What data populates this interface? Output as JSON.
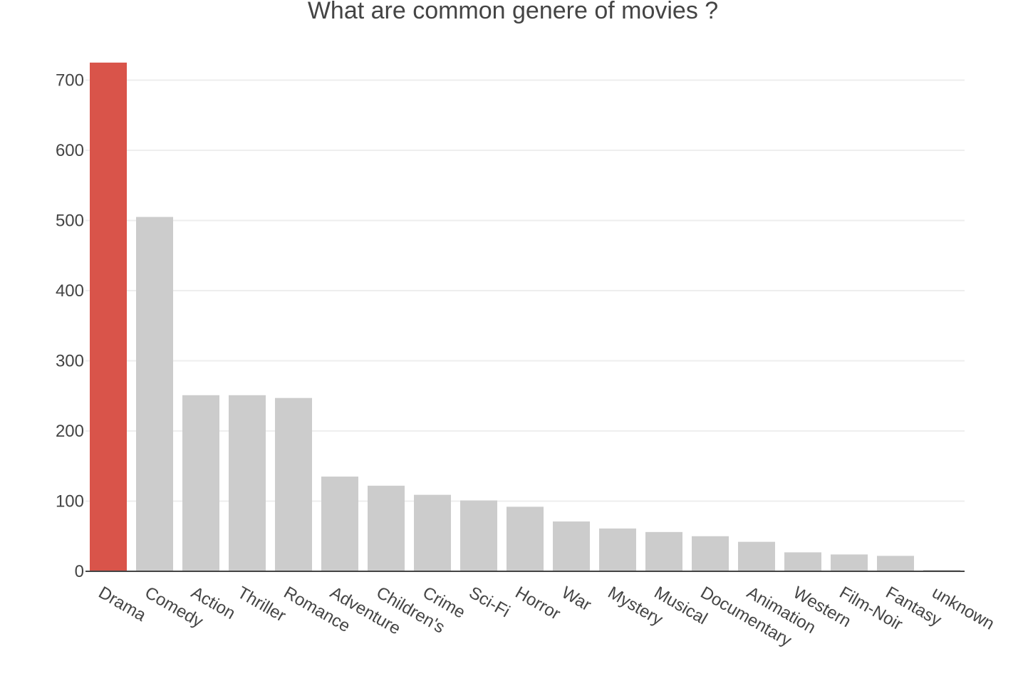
{
  "chart_data": {
    "type": "bar",
    "title": "What are common genere of movies ?",
    "xlabel": "",
    "ylabel": "",
    "categories": [
      "Drama",
      "Comedy",
      "Action",
      "Thriller",
      "Romance",
      "Adventure",
      "Children's",
      "Crime",
      "Sci-Fi",
      "Horror",
      "War",
      "Mystery",
      "Musical",
      "Documentary",
      "Animation",
      "Western",
      "Film-Noir",
      "Fantasy",
      "unknown"
    ],
    "values": [
      725,
      505,
      251,
      251,
      247,
      135,
      122,
      109,
      101,
      92,
      71,
      61,
      56,
      50,
      42,
      27,
      24,
      22,
      2
    ],
    "ylim": [
      0,
      730
    ],
    "yticks": [
      0,
      100,
      200,
      300,
      400,
      500,
      600,
      700
    ],
    "grid": true,
    "legend": "none",
    "colors": {
      "highlight": "#d9544a",
      "default": "#cccccc",
      "text": "#444444",
      "grid": "#eeeeee"
    },
    "highlight_index": 0
  }
}
